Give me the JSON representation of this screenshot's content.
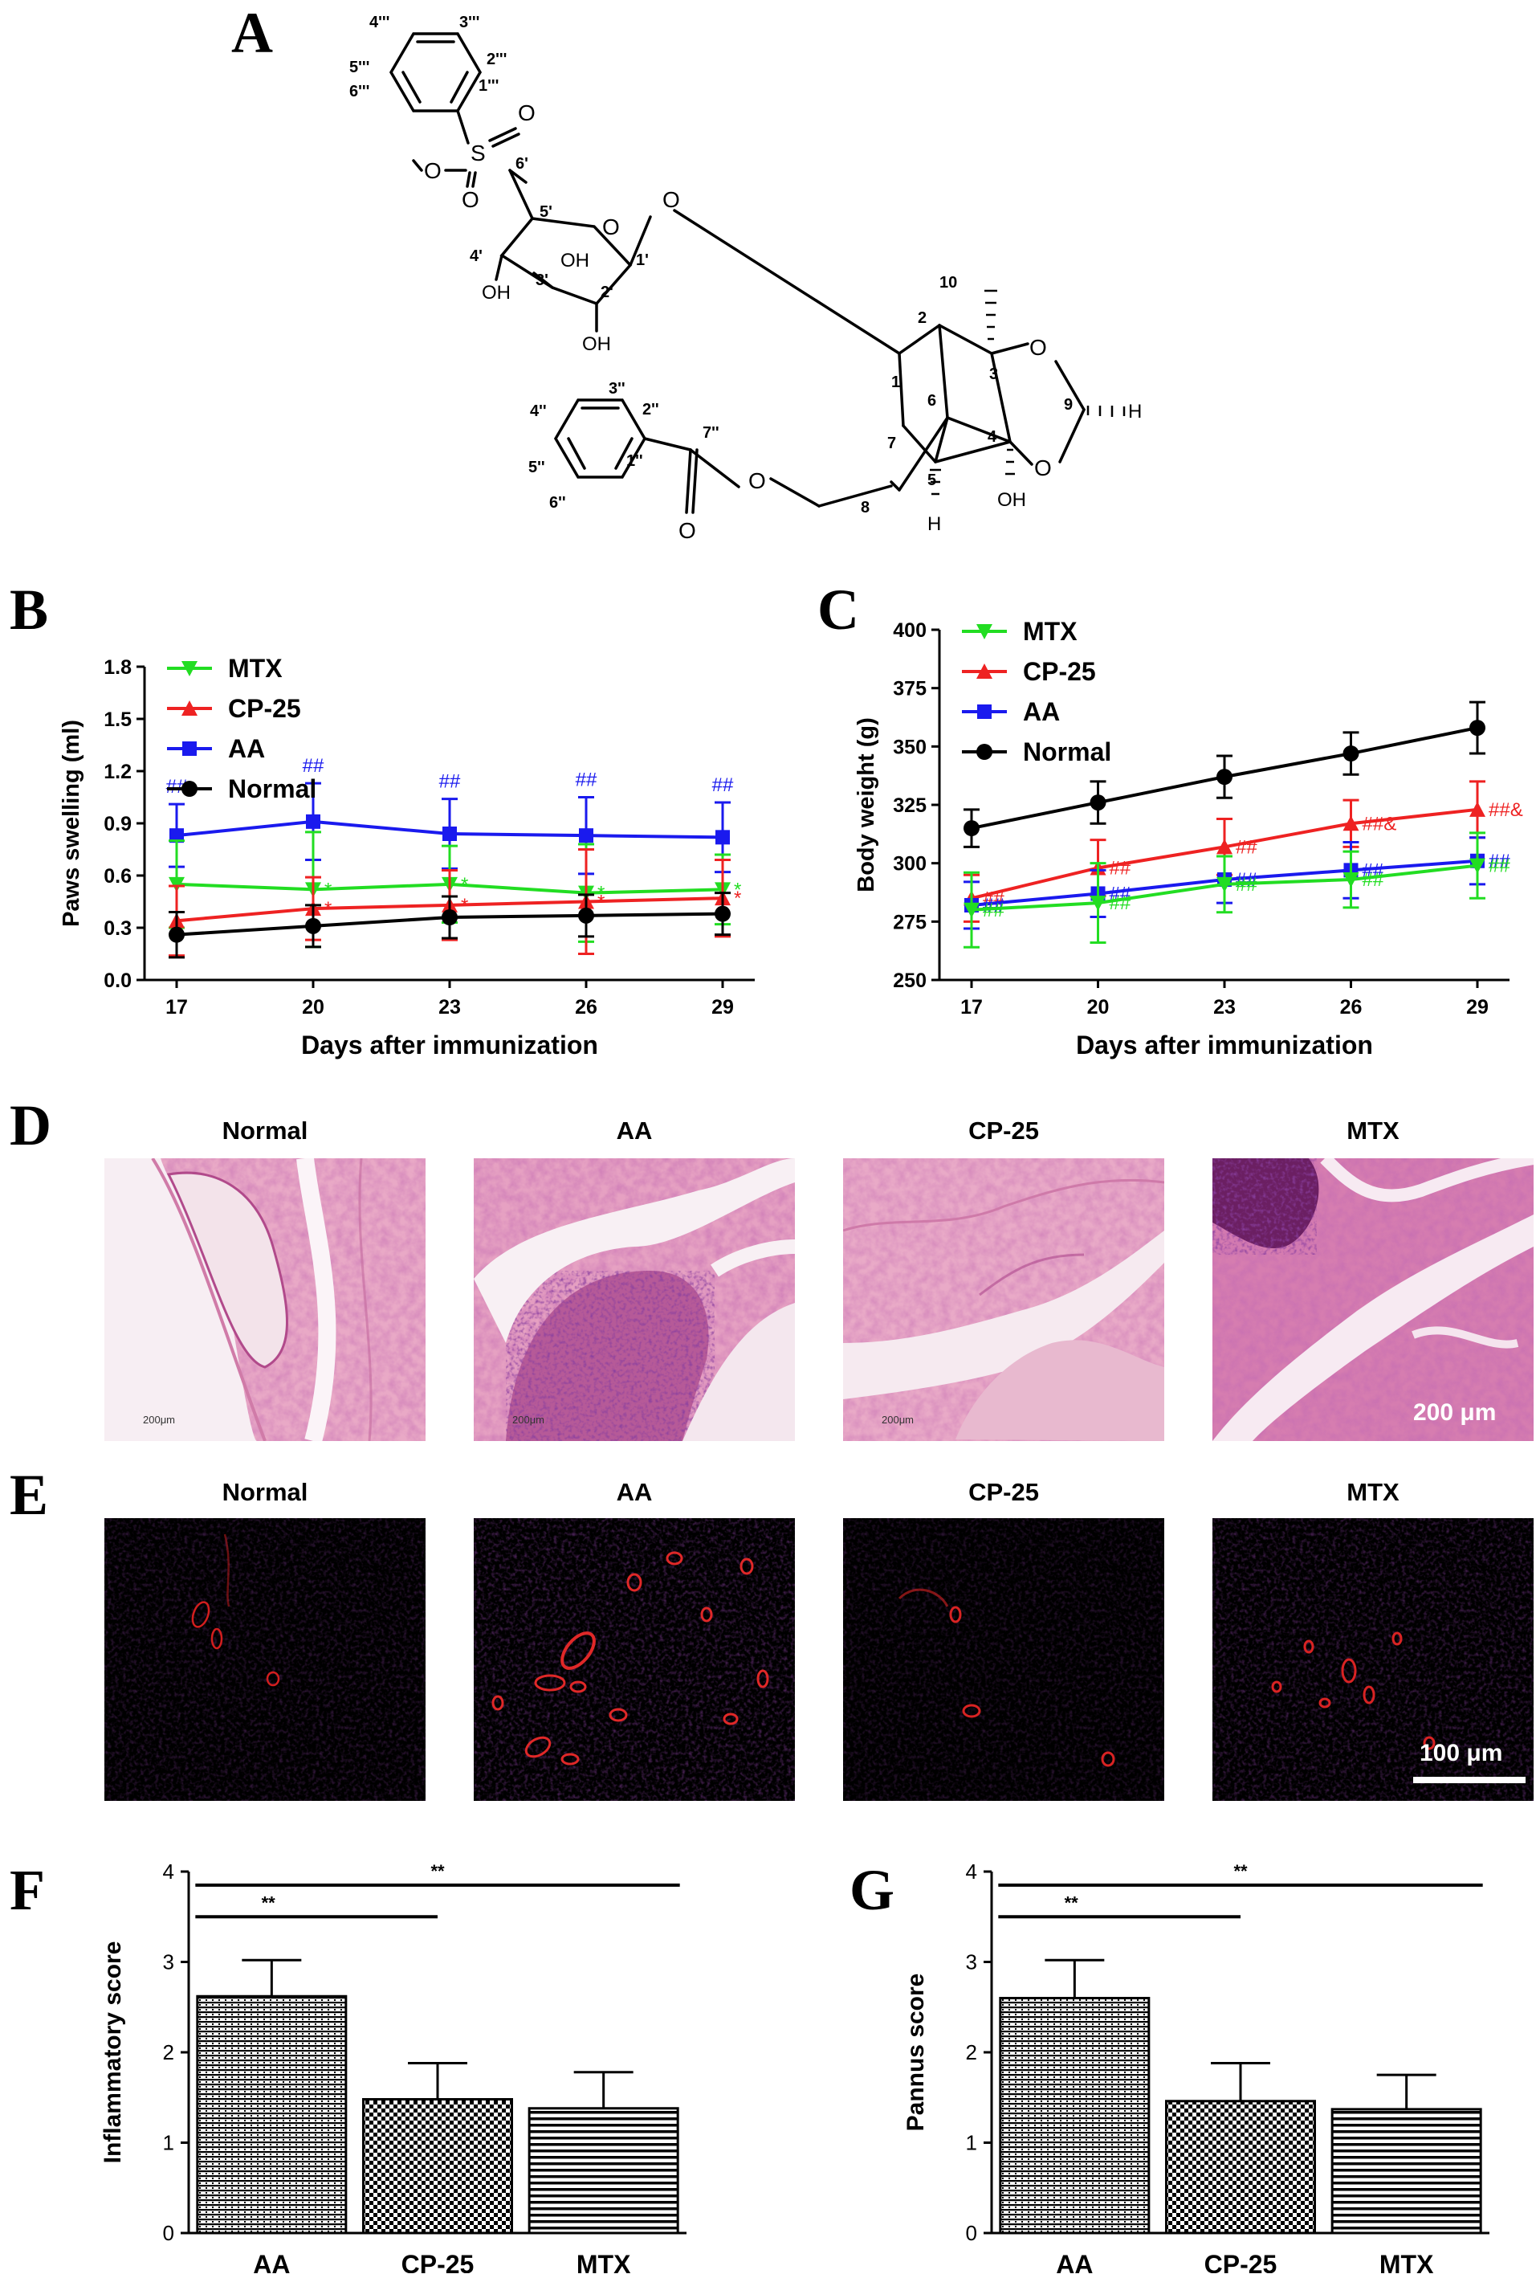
{
  "panels": {
    "A": {
      "letter": "A"
    },
    "B": {
      "letter": "B"
    },
    "C": {
      "letter": "C"
    },
    "D": {
      "letter": "D"
    },
    "E": {
      "letter": "E"
    },
    "F": {
      "letter": "F"
    },
    "G": {
      "letter": "G"
    }
  },
  "structure": {
    "atom_labels": {
      "O": "O",
      "S": "S",
      "OH": "OH",
      "H": "H"
    },
    "numbers": {
      "c4ppp": "4'''",
      "c3ppp": "3'''",
      "c2ppp": "2'''",
      "c1ppp": "1'''",
      "c5ppp": "5'''",
      "c6ppp": "6'''",
      "c6p": "6'",
      "c5p": "5'",
      "c4p": "4'",
      "c3p": "3'",
      "c2p": "2'",
      "c1p": "1'",
      "c10": "10",
      "c2": "2",
      "c1": "1",
      "c3": "3",
      "c9": "9",
      "c6": "6",
      "c7": "7",
      "c4": "4",
      "c5": "5",
      "c8": "8",
      "c3pp": "3''",
      "c2pp": "2''",
      "c4pp": "4''",
      "c1pp": "1''",
      "c5pp": "5''",
      "c6pp": "6''",
      "c7pp": "7''"
    }
  },
  "histology": {
    "he_titles": [
      "Normal",
      "AA",
      "CP-25",
      "MTX"
    ],
    "he_scale_small": "200μm",
    "he_scale_large": "200 μm",
    "if_titles": [
      "Normal",
      "AA",
      "CP-25",
      "MTX"
    ],
    "if_scale": "100 μm"
  },
  "colors": {
    "MTX": "#22dd22",
    "CP-25": "#ee2222",
    "AA": "#1a1aee",
    "Normal": "#000000"
  },
  "chart_data": [
    {
      "id": "B",
      "type": "line",
      "xlabel": "Days after immunization",
      "ylabel": "Paws swelling (ml)",
      "x": [
        17,
        20,
        23,
        26,
        29
      ],
      "ylim": [
        0.0,
        1.8
      ],
      "yticks": [
        "0.0",
        "0.3",
        "0.6",
        "0.9",
        "1.2",
        "1.5",
        "1.8"
      ],
      "legend": [
        "MTX",
        "CP-25",
        "AA",
        "Normal"
      ],
      "series": [
        {
          "name": "AA",
          "values": [
            0.83,
            0.91,
            0.84,
            0.83,
            0.82
          ],
          "err": [
            0.18,
            0.22,
            0.2,
            0.22,
            0.2
          ],
          "ann": [
            "##",
            "##",
            "##",
            "##",
            "##"
          ]
        },
        {
          "name": "MTX",
          "values": [
            0.55,
            0.52,
            0.55,
            0.5,
            0.52
          ],
          "err": [
            0.25,
            0.33,
            0.22,
            0.28,
            0.2
          ],
          "ann": [
            "",
            "*",
            "*",
            "*",
            "*"
          ]
        },
        {
          "name": "CP-25",
          "values": [
            0.34,
            0.41,
            0.43,
            0.45,
            0.47
          ],
          "err": [
            0.2,
            0.18,
            0.2,
            0.3,
            0.22
          ],
          "ann": [
            "",
            "*",
            "*",
            "*",
            "*"
          ]
        },
        {
          "name": "Normal",
          "values": [
            0.26,
            0.31,
            0.36,
            0.37,
            0.38
          ],
          "err": [
            0.13,
            0.12,
            0.12,
            0.12,
            0.12
          ],
          "ann": [
            "",
            "",
            "",
            "",
            ""
          ]
        }
      ]
    },
    {
      "id": "C",
      "type": "line",
      "xlabel": "Days after immunization",
      "ylabel": "Body weight (g)",
      "x": [
        17,
        20,
        23,
        26,
        29
      ],
      "ylim": [
        250,
        400
      ],
      "yticks": [
        "250",
        "275",
        "300",
        "325",
        "350",
        "375",
        "400"
      ],
      "legend": [
        "MTX",
        "CP-25",
        "AA",
        "Normal"
      ],
      "series": [
        {
          "name": "Normal",
          "values": [
            315,
            326,
            337,
            347,
            358
          ],
          "err": [
            8,
            9,
            9,
            9,
            11
          ],
          "ann": [
            "",
            "",
            "",
            "",
            ""
          ]
        },
        {
          "name": "CP-25",
          "values": [
            285,
            298,
            307,
            317,
            323
          ],
          "err": [
            10,
            12,
            12,
            10,
            12
          ],
          "ann": [
            "##",
            "##",
            "##",
            "##&",
            "##&"
          ]
        },
        {
          "name": "AA",
          "values": [
            282,
            287,
            293,
            297,
            301
          ],
          "err": [
            10,
            10,
            10,
            12,
            10
          ],
          "ann": [
            "##",
            "##",
            "##",
            "##",
            "##"
          ]
        },
        {
          "name": "MTX",
          "values": [
            280,
            283,
            291,
            293,
            299
          ],
          "err": [
            16,
            17,
            12,
            12,
            14
          ],
          "ann": [
            "##",
            "##",
            "##",
            "##",
            "##"
          ]
        }
      ]
    },
    {
      "id": "F",
      "type": "bar",
      "ylabel": "Inflammatory score",
      "categories": [
        "AA",
        "CP-25",
        "MTX"
      ],
      "values": [
        2.62,
        1.48,
        1.38
      ],
      "err": [
        0.4,
        0.4,
        0.4
      ],
      "ylim": [
        0,
        4
      ],
      "yticks": [
        "0",
        "1",
        "2",
        "3",
        "4"
      ],
      "significance": [
        {
          "from": "AA",
          "to": "CP-25",
          "label": "**"
        },
        {
          "from": "AA",
          "to": "MTX",
          "label": "**"
        }
      ]
    },
    {
      "id": "G",
      "type": "bar",
      "ylabel": "Pannus score",
      "categories": [
        "AA",
        "CP-25",
        "MTX"
      ],
      "values": [
        2.6,
        1.46,
        1.37
      ],
      "err": [
        0.42,
        0.42,
        0.38
      ],
      "ylim": [
        0,
        4
      ],
      "yticks": [
        "0",
        "1",
        "2",
        "3",
        "4"
      ],
      "significance": [
        {
          "from": "AA",
          "to": "CP-25",
          "label": "**"
        },
        {
          "from": "AA",
          "to": "MTX",
          "label": "**"
        }
      ]
    }
  ]
}
